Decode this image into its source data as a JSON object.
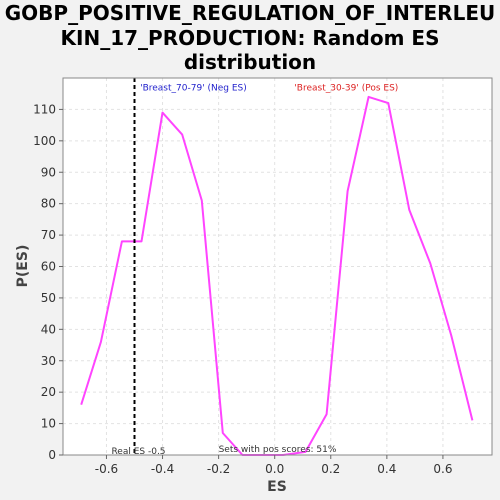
{
  "chart_data": {
    "type": "line",
    "title_lines": [
      "GOBP_POSITIVE_REGULATION_OF_INTERLEU",
      "KIN_17_PRODUCTION: Random ES",
      "distribution"
    ],
    "xlabel": "ES",
    "ylabel": "P(ES)",
    "xlim": [
      -0.755,
      0.775
    ],
    "ylim": [
      0,
      120
    ],
    "x_ticks": [
      -0.6,
      -0.4,
      -0.2,
      0.0,
      0.2,
      0.4,
      0.6
    ],
    "x_tick_labels": [
      "-0.6",
      "-0.4",
      "-0.2",
      "0.0",
      "0.2",
      "0.4",
      "0.6"
    ],
    "y_ticks": [
      0,
      10,
      20,
      30,
      40,
      50,
      60,
      70,
      80,
      90,
      100,
      110
    ],
    "y_tick_labels": [
      "0",
      "10",
      "20",
      "30",
      "40",
      "50",
      "60",
      "70",
      "80",
      "90",
      "100",
      "110"
    ],
    "grid": true,
    "series": [
      {
        "color": "#ff44ff",
        "x": [
          -0.69,
          -0.62,
          -0.545,
          -0.475,
          -0.4,
          -0.33,
          -0.26,
          -0.185,
          -0.115,
          -0.045,
          0.03,
          0.11,
          0.185,
          0.26,
          0.335,
          0.405,
          0.48,
          0.555,
          0.63,
          0.705
        ],
        "y": [
          16,
          36,
          68,
          68,
          109,
          102,
          81,
          7,
          0,
          0,
          0,
          1,
          13,
          84,
          114,
          112,
          78,
          61,
          38,
          11
        ]
      }
    ],
    "real_es": {
      "x": -0.5,
      "label": "Real ES -0.5",
      "color": "#000000"
    },
    "annotations": [
      {
        "text": "'Breast_70-79' (Neg ES)",
        "color": "#2222cc",
        "x": -0.48,
        "y": 116
      },
      {
        "text": "'Breast_30-39' (Pos ES)",
        "color": "#dd2222",
        "x": 0.07,
        "y": 116
      }
    ],
    "footer_text": "Sets with pos scores: 51%"
  }
}
